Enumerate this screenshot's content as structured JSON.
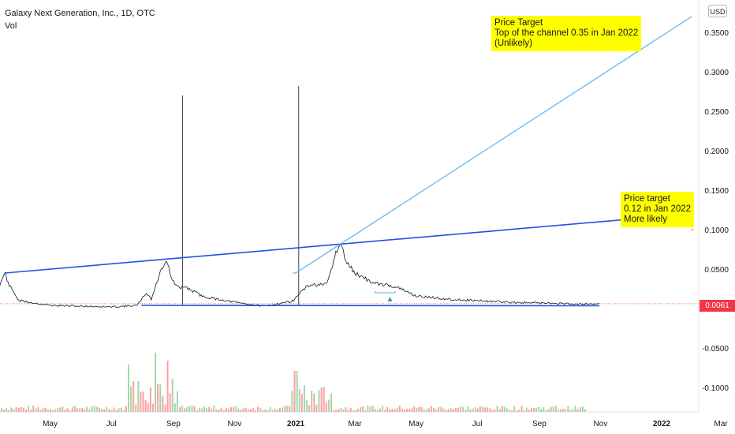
{
  "header": {
    "title": "Galaxy Next Generation, Inc., 1D, OTC",
    "volume_label": "Vol",
    "currency_button": "USD"
  },
  "price_label": "0.0061",
  "annotations": [
    {
      "id": "upper",
      "lines": [
        "Price Target",
        "Top of the channel 0.35 in Jan 2022",
        "(Unlikely)"
      ]
    },
    {
      "id": "lower",
      "lines": [
        "Price target",
        "0.12 in Jan 2022",
        "More likely"
      ]
    }
  ],
  "colors": {
    "price_line": "#131722",
    "trend_dark": "#1e53e5",
    "trend_light": "#5ab4f0",
    "up_volume": "#a5d6a7",
    "down_volume": "#faa1a4",
    "marker": "#26a69a"
  },
  "chart_data": {
    "type": "line",
    "title": "Galaxy Next Generation, Inc., 1D, OTC",
    "y_axis": {
      "ticks": [
        "0.3500",
        "0.3000",
        "0.2500",
        "0.2000",
        "0.1500",
        "0.1000",
        "0.0500",
        "-0.0500",
        "-0.1000"
      ],
      "ylim": [
        -0.13,
        0.38
      ]
    },
    "x_axis": {
      "ticks": [
        "Mar",
        "May",
        "Jul",
        "Sep",
        "Nov",
        "2021",
        "Mar",
        "May",
        "Jul",
        "Sep",
        "Nov",
        "2022",
        "Mar"
      ]
    },
    "series": [
      {
        "points": [
          [
            "2020-02-26",
            0.018
          ],
          [
            "2020-03-09",
            0.015
          ],
          [
            "2020-03-12",
            0.03
          ],
          [
            "2020-03-17",
            0.046
          ],
          [
            "2020-03-20",
            0.032
          ],
          [
            "2020-03-31",
            0.01
          ],
          [
            "2020-05-01",
            0.004
          ],
          [
            "2020-06-01",
            0.003
          ],
          [
            "2020-07-01",
            0.002
          ],
          [
            "2020-07-27",
            0.004
          ],
          [
            "2020-08-05",
            0.02
          ],
          [
            "2020-08-10",
            0.012
          ],
          [
            "2020-08-20",
            0.05
          ],
          [
            "2020-08-25",
            0.062
          ],
          [
            "2020-08-31",
            0.035
          ],
          [
            "2020-09-07",
            0.025
          ],
          [
            "2020-09-12",
            0.028
          ],
          [
            "2020-10-01",
            0.015
          ],
          [
            "2020-11-01",
            0.008
          ],
          [
            "2020-12-01",
            0.003
          ],
          [
            "2020-12-30",
            0.01
          ],
          [
            "2021-01-05",
            0.02
          ],
          [
            "2021-01-15",
            0.03
          ],
          [
            "2021-02-01",
            0.03
          ],
          [
            "2021-02-10",
            0.07
          ],
          [
            "2021-02-15",
            0.082
          ],
          [
            "2021-02-20",
            0.06
          ],
          [
            "2021-03-01",
            0.045
          ],
          [
            "2021-03-20",
            0.032
          ],
          [
            "2021-04-10",
            0.028
          ],
          [
            "2021-05-01",
            0.016
          ],
          [
            "2021-06-01",
            0.012
          ],
          [
            "2021-07-01",
            0.01
          ],
          [
            "2021-08-01",
            0.008
          ],
          [
            "2021-09-01",
            0.007
          ],
          [
            "2021-10-01",
            0.006
          ],
          [
            "2021-10-31",
            0.0061
          ]
        ]
      }
    ],
    "spikes": [
      [
        "2020-09-10",
        0.27
      ],
      [
        "2021-01-04",
        0.282
      ]
    ],
    "trendlines": [
      {
        "name": "upper channel",
        "from": [
          "2020-03-17",
          0.045
        ],
        "to": [
          "2022-01-31",
          0.12
        ]
      },
      {
        "name": "support",
        "from": [
          "2020-07-31",
          0.004
        ],
        "to": [
          "2021-10-31",
          0.0035
        ]
      },
      {
        "name": "target line",
        "from": [
          "2021-01-01",
          0.045
        ],
        "to": [
          "2022-01-31",
          0.37
        ]
      }
    ],
    "volume_bars": 240
  }
}
